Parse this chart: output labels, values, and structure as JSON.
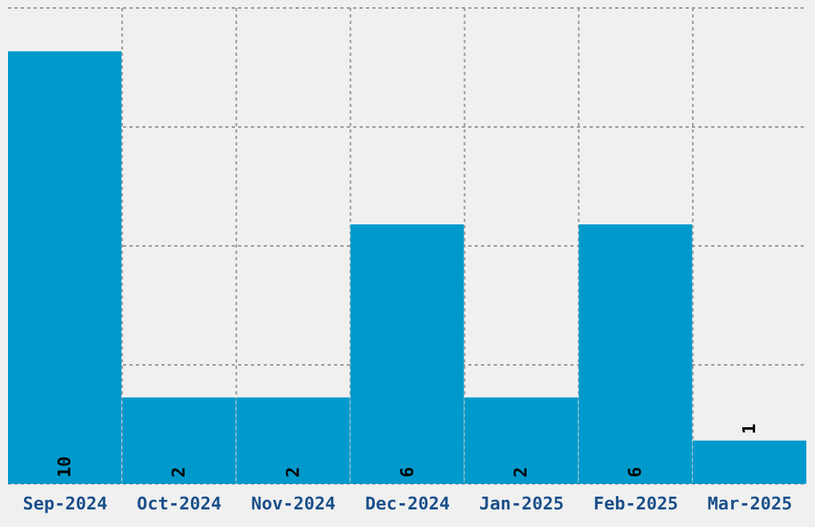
{
  "chart_data": {
    "type": "bar",
    "categories": [
      "Sep-2024",
      "Oct-2024",
      "Nov-2024",
      "Dec-2024",
      "Jan-2025",
      "Feb-2025",
      "Mar-2025"
    ],
    "values": [
      10,
      2,
      2,
      6,
      2,
      6,
      1
    ],
    "color": "#0099cc",
    "data_labels": true,
    "grid": true,
    "tick_labels": "x",
    "ylim": [
      0,
      11
    ],
    "yticks": [
      {
        "value": 0,
        "label": null
      },
      {
        "value": 2.75,
        "label": null
      },
      {
        "value": 5.5,
        "label": null
      },
      {
        "value": 8.25,
        "label": null
      },
      {
        "value": 11,
        "label": null
      }
    ]
  }
}
